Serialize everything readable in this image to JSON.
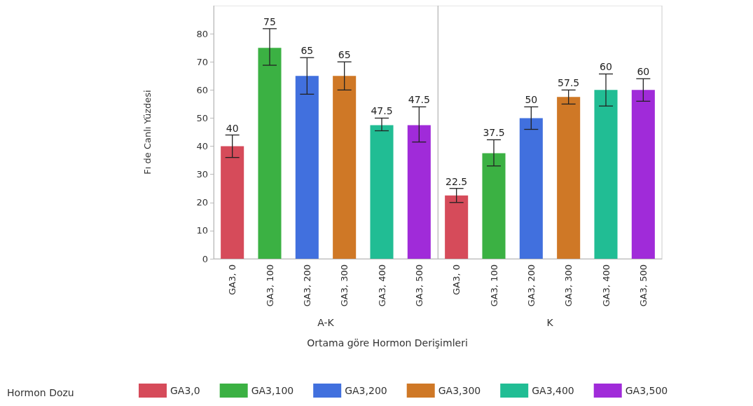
{
  "chart_data": [
    {
      "type": "bar",
      "xlabel": "A-K",
      "ylabel": "Fı de Canlı Yüzdesi",
      "categories": [
        "GA3, 0",
        "GA3, 100",
        "GA3, 200",
        "GA3, 300",
        "GA3, 400",
        "GA3, 500"
      ],
      "ylim": [
        0,
        90
      ],
      "yticks": [
        0,
        10,
        20,
        30,
        40,
        50,
        60,
        70,
        80
      ],
      "grid": false,
      "legend": "bottom",
      "legend_title": "Hormon Dozu",
      "data_labels": true,
      "annotations": [
        "Ortama göre Hormon Derişimleri"
      ],
      "series": [
        {
          "name": "GA3,0",
          "color": "#d64b5a",
          "values": [
            40,
            null,
            null,
            null,
            null,
            null
          ],
          "errors": [
            [
              36,
              44
            ],
            null,
            null,
            null,
            null,
            null
          ]
        },
        {
          "name": "GA3,100",
          "color": "#3bb143",
          "values": [
            null,
            75,
            null,
            null,
            null,
            null
          ],
          "errors": [
            null,
            [
              68.8,
              81.8
            ],
            null,
            null,
            null,
            null
          ]
        },
        {
          "name": "GA3,200",
          "color": "#4170de",
          "values": [
            null,
            null,
            65,
            null,
            null,
            null
          ],
          "errors": [
            null,
            null,
            [
              58.5,
              71.5
            ],
            null,
            null,
            null
          ]
        },
        {
          "name": "GA3,300",
          "color": "#cf7826",
          "values": [
            null,
            null,
            null,
            65,
            null,
            null
          ],
          "errors": [
            null,
            null,
            null,
            [
              60,
              70
            ],
            null,
            null
          ]
        },
        {
          "name": "GA3,400",
          "color": "#21bd94",
          "values": [
            null,
            null,
            null,
            null,
            47.5,
            null
          ],
          "errors": [
            null,
            null,
            null,
            null,
            [
              45.5,
              50
            ],
            null
          ]
        },
        {
          "name": "GA3,500",
          "color": "#a02bd9",
          "values": [
            null,
            null,
            null,
            null,
            null,
            47.5
          ],
          "errors": [
            null,
            null,
            null,
            null,
            null,
            [
              41.5,
              54
            ]
          ]
        }
      ]
    },
    {
      "type": "bar",
      "xlabel": "K",
      "categories": [
        "GA3, 0",
        "GA3, 100",
        "GA3, 200",
        "GA3, 300",
        "GA3, 400",
        "GA3, 500"
      ],
      "ylim": [
        0,
        90
      ],
      "yticks": [
        0,
        10,
        20,
        30,
        40,
        50,
        60,
        70,
        80
      ],
      "tick_labels": "x",
      "grid": false,
      "data_labels": true,
      "series": [
        {
          "color": "#d64b5a",
          "values": [
            22.5,
            null,
            null,
            null,
            null,
            null
          ],
          "errors": [
            [
              20,
              25
            ],
            null,
            null,
            null,
            null,
            null
          ]
        },
        {
          "color": "#3bb143",
          "values": [
            null,
            37.5,
            null,
            null,
            null,
            null
          ],
          "errors": [
            null,
            [
              33,
              42.3
            ],
            null,
            null,
            null,
            null
          ]
        },
        {
          "color": "#4170de",
          "values": [
            null,
            null,
            50,
            null,
            null,
            null
          ],
          "errors": [
            null,
            null,
            [
              46,
              54
            ],
            null,
            null,
            null
          ]
        },
        {
          "color": "#cf7826",
          "values": [
            null,
            null,
            null,
            57.5,
            null,
            null
          ],
          "errors": [
            null,
            null,
            null,
            [
              55,
              60
            ],
            null,
            null
          ]
        },
        {
          "color": "#21bd94",
          "values": [
            null,
            null,
            null,
            null,
            60,
            null
          ],
          "errors": [
            null,
            null,
            null,
            null,
            [
              54.3,
              65.7
            ],
            null
          ]
        },
        {
          "color": "#a02bd9",
          "values": [
            null,
            null,
            null,
            null,
            null,
            60
          ],
          "errors": [
            null,
            null,
            null,
            null,
            null,
            [
              56,
              64
            ]
          ]
        }
      ]
    }
  ]
}
